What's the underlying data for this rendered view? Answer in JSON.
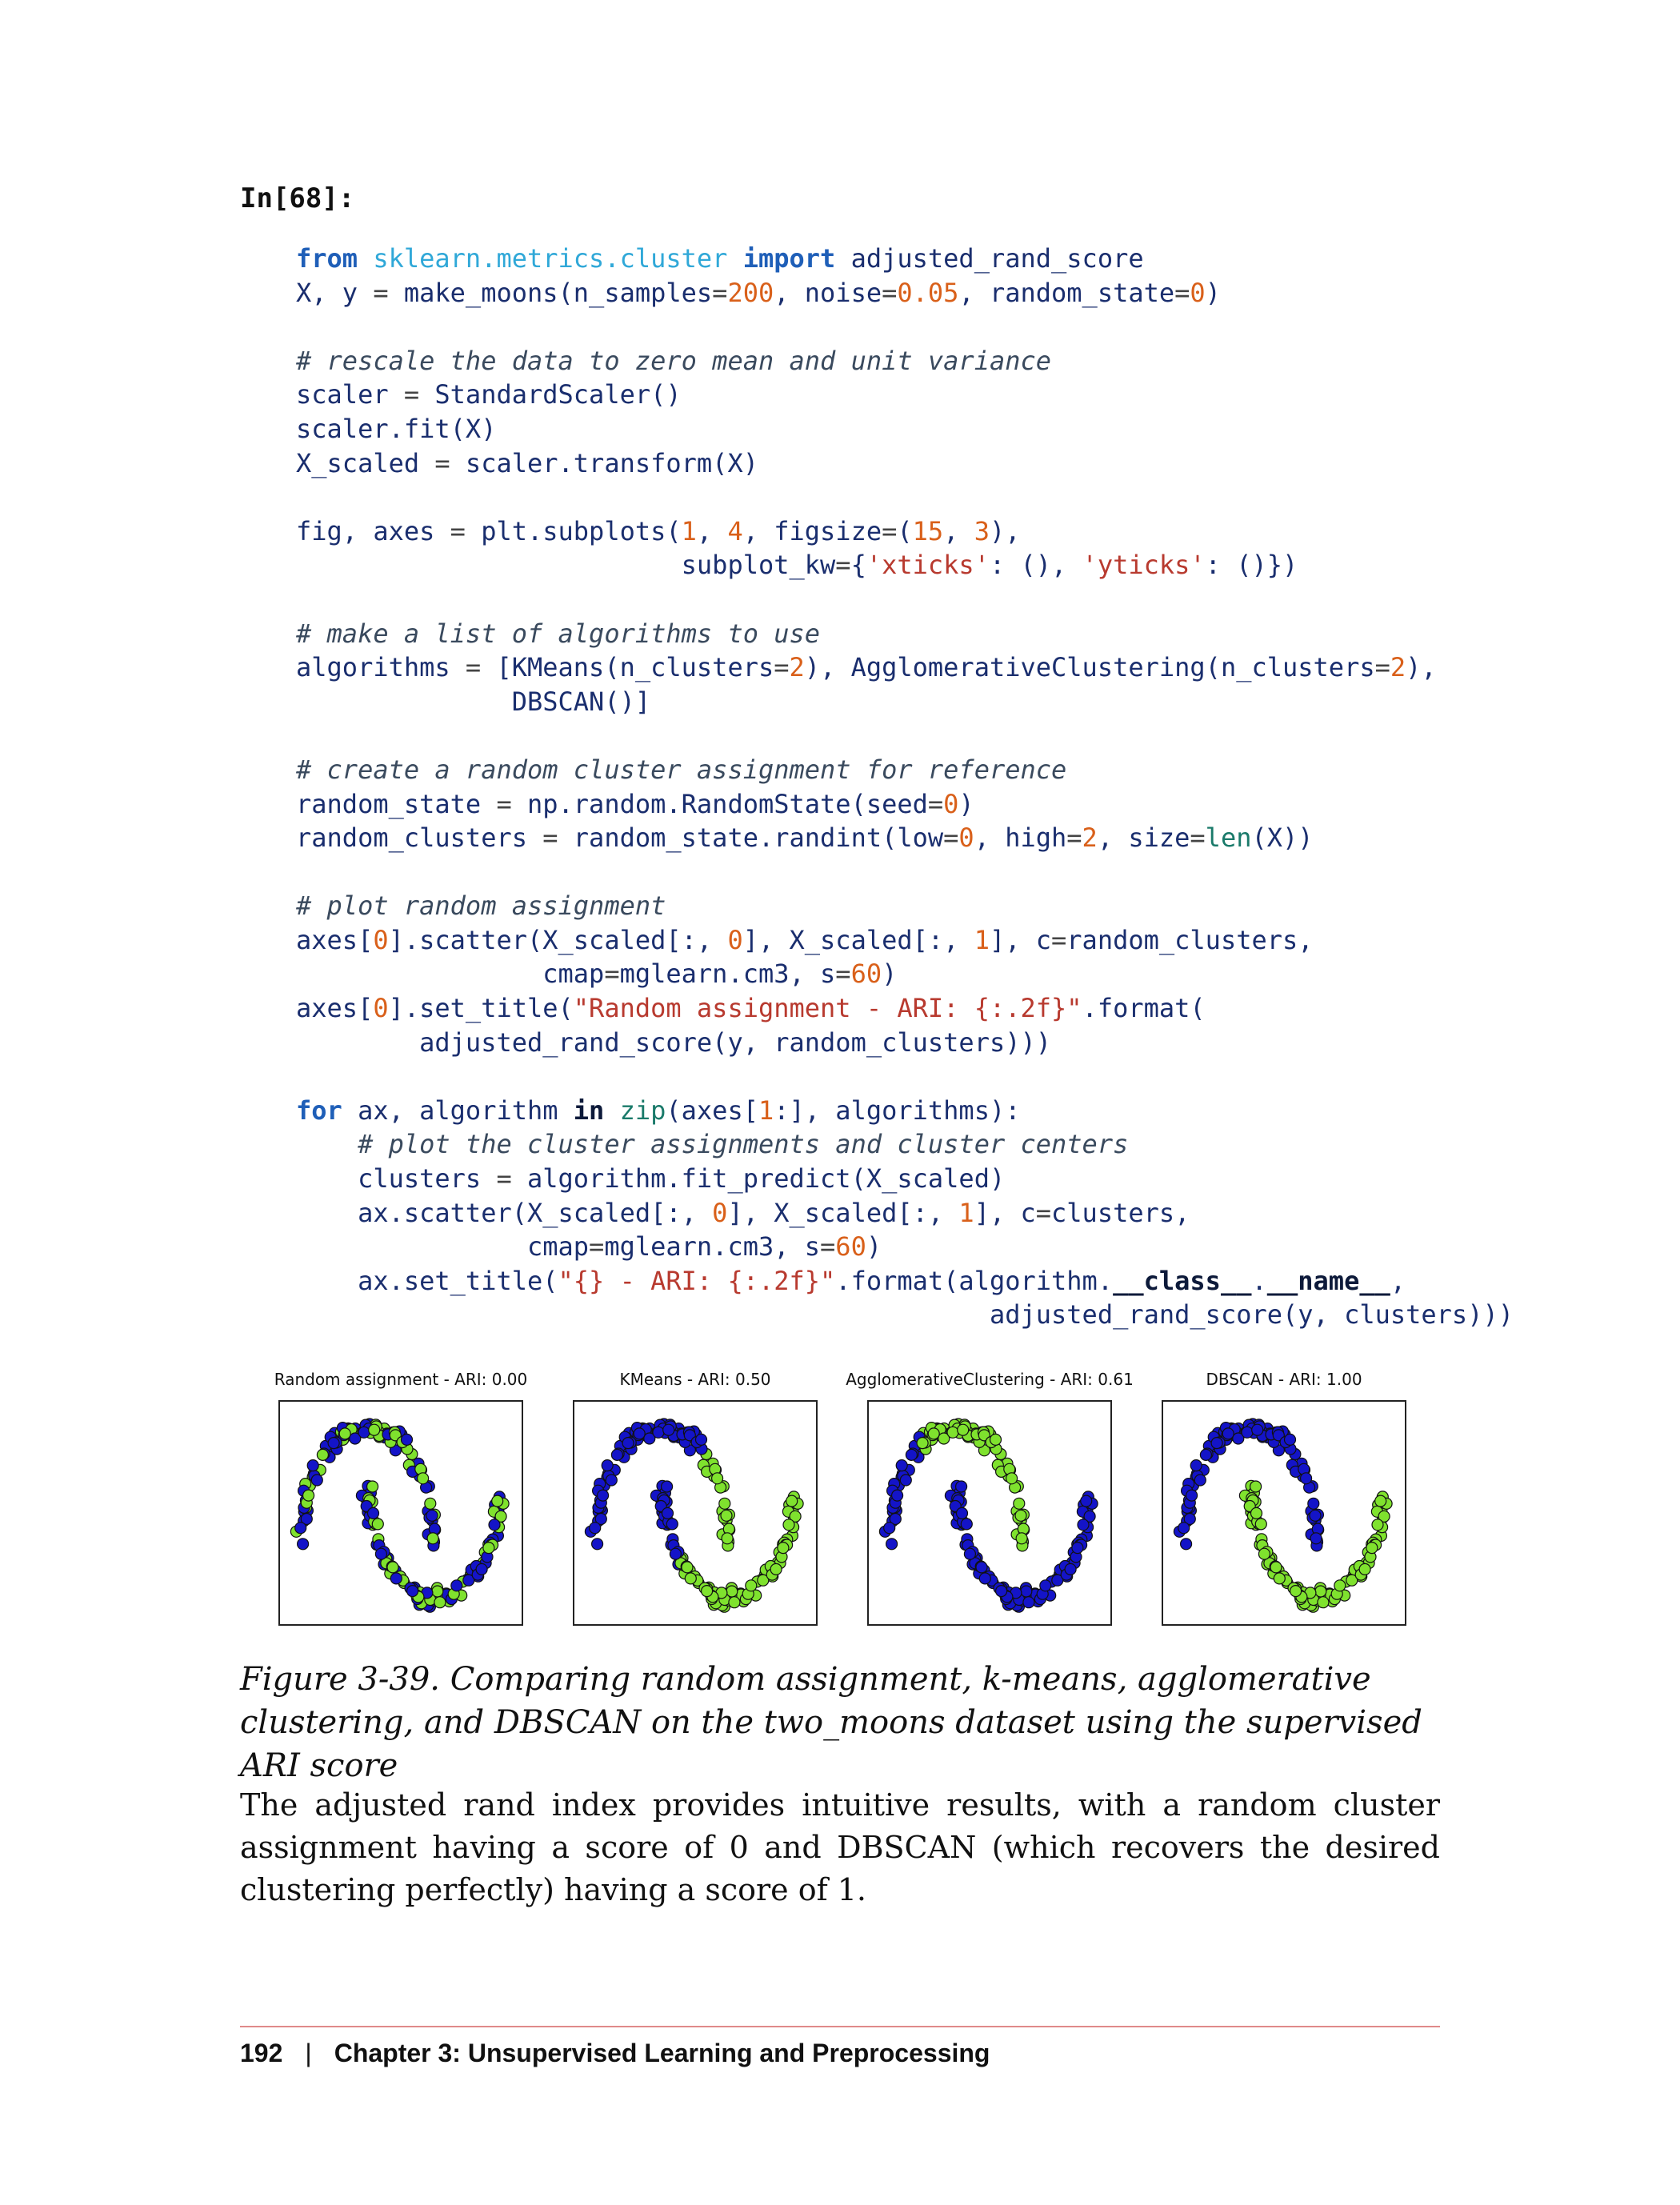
{
  "prompt": "In[68]:",
  "code_lines": [
    [
      [
        "kw",
        "from"
      ],
      [
        "t",
        " "
      ],
      [
        "mod",
        "sklearn.metrics.cluster"
      ],
      [
        "t",
        " "
      ],
      [
        "kw",
        "import"
      ],
      [
        "t",
        " adjusted_rand_score"
      ]
    ],
    [
      [
        "t",
        "X, y "
      ],
      [
        "op",
        "="
      ],
      [
        "t",
        " make_moons(n_samples"
      ],
      [
        "op",
        "="
      ],
      [
        "nu",
        "200"
      ],
      [
        "t",
        ", noise"
      ],
      [
        "op",
        "="
      ],
      [
        "nu",
        "0.05"
      ],
      [
        "t",
        ", random_state"
      ],
      [
        "op",
        "="
      ],
      [
        "nu",
        "0"
      ],
      [
        "t",
        ")"
      ]
    ],
    [],
    [
      [
        "cm",
        "# rescale the data to zero mean and unit variance"
      ]
    ],
    [
      [
        "t",
        "scaler "
      ],
      [
        "op",
        "="
      ],
      [
        "t",
        " StandardScaler()"
      ]
    ],
    [
      [
        "t",
        "scaler.fit(X)"
      ]
    ],
    [
      [
        "t",
        "X_scaled "
      ],
      [
        "op",
        "="
      ],
      [
        "t",
        " scaler.transform(X)"
      ]
    ],
    [],
    [
      [
        "t",
        "fig, axes "
      ],
      [
        "op",
        "="
      ],
      [
        "t",
        " plt.subplots("
      ],
      [
        "nu",
        "1"
      ],
      [
        "t",
        ", "
      ],
      [
        "nu",
        "4"
      ],
      [
        "t",
        ", figsize"
      ],
      [
        "op",
        "="
      ],
      [
        "t",
        "("
      ],
      [
        "nu",
        "15"
      ],
      [
        "t",
        ", "
      ],
      [
        "nu",
        "3"
      ],
      [
        "t",
        "),"
      ]
    ],
    [
      [
        "t",
        "                         subplot_kw"
      ],
      [
        "op",
        "="
      ],
      [
        "t",
        "{"
      ],
      [
        "st",
        "'xticks'"
      ],
      [
        "t",
        ": (), "
      ],
      [
        "st",
        "'yticks'"
      ],
      [
        "t",
        ": ()})"
      ]
    ],
    [],
    [
      [
        "cm",
        "# make a list of algorithms to use"
      ]
    ],
    [
      [
        "t",
        "algorithms "
      ],
      [
        "op",
        "="
      ],
      [
        "t",
        " [KMeans(n_clusters"
      ],
      [
        "op",
        "="
      ],
      [
        "nu",
        "2"
      ],
      [
        "t",
        "), AgglomerativeClustering(n_clusters"
      ],
      [
        "op",
        "="
      ],
      [
        "nu",
        "2"
      ],
      [
        "t",
        "),"
      ]
    ],
    [
      [
        "t",
        "              DBSCAN()]"
      ]
    ],
    [],
    [
      [
        "cm",
        "# create a random cluster assignment for reference"
      ]
    ],
    [
      [
        "t",
        "random_state "
      ],
      [
        "op",
        "="
      ],
      [
        "t",
        " np.random.RandomState(seed"
      ],
      [
        "op",
        "="
      ],
      [
        "nu",
        "0"
      ],
      [
        "t",
        ")"
      ]
    ],
    [
      [
        "t",
        "random_clusters "
      ],
      [
        "op",
        "="
      ],
      [
        "t",
        " random_state.randint(low"
      ],
      [
        "op",
        "="
      ],
      [
        "nu",
        "0"
      ],
      [
        "t",
        ", high"
      ],
      [
        "op",
        "="
      ],
      [
        "nu",
        "2"
      ],
      [
        "t",
        ", size"
      ],
      [
        "op",
        "="
      ],
      [
        "bi",
        "len"
      ],
      [
        "t",
        "(X))"
      ]
    ],
    [],
    [
      [
        "cm",
        "# plot random assignment"
      ]
    ],
    [
      [
        "t",
        "axes["
      ],
      [
        "nu",
        "0"
      ],
      [
        "t",
        "].scatter(X_scaled[:, "
      ],
      [
        "nu",
        "0"
      ],
      [
        "t",
        "], X_scaled[:, "
      ],
      [
        "nu",
        "1"
      ],
      [
        "t",
        "], c"
      ],
      [
        "op",
        "="
      ],
      [
        "t",
        "random_clusters,"
      ]
    ],
    [
      [
        "t",
        "                cmap"
      ],
      [
        "op",
        "="
      ],
      [
        "t",
        "mglearn.cm3, s"
      ],
      [
        "op",
        "="
      ],
      [
        "nu",
        "60"
      ],
      [
        "t",
        ")"
      ]
    ],
    [
      [
        "t",
        "axes["
      ],
      [
        "nu",
        "0"
      ],
      [
        "t",
        "].set_title("
      ],
      [
        "st",
        "\"Random assignment - ARI: {:.2f}\""
      ],
      [
        "t",
        ".format("
      ]
    ],
    [
      [
        "t",
        "        adjusted_rand_score(y, random_clusters)))"
      ]
    ],
    [],
    [
      [
        "kw",
        "for"
      ],
      [
        "t",
        " ax, algorithm "
      ],
      [
        "bold",
        "in"
      ],
      [
        "t",
        " "
      ],
      [
        "bi",
        "zip"
      ],
      [
        "t",
        "(axes["
      ],
      [
        "nu",
        "1"
      ],
      [
        "t",
        ":], algorithms):"
      ]
    ],
    [
      [
        "cm",
        "    # plot the cluster assignments and cluster centers"
      ]
    ],
    [
      [
        "t",
        "    clusters "
      ],
      [
        "op",
        "="
      ],
      [
        "t",
        " algorithm.fit_predict(X_scaled)"
      ]
    ],
    [
      [
        "t",
        "    ax.scatter(X_scaled[:, "
      ],
      [
        "nu",
        "0"
      ],
      [
        "t",
        "], X_scaled[:, "
      ],
      [
        "nu",
        "1"
      ],
      [
        "t",
        "], c"
      ],
      [
        "op",
        "="
      ],
      [
        "t",
        "clusters,"
      ]
    ],
    [
      [
        "t",
        "               cmap"
      ],
      [
        "op",
        "="
      ],
      [
        "t",
        "mglearn.cm3, s"
      ],
      [
        "op",
        "="
      ],
      [
        "nu",
        "60"
      ],
      [
        "t",
        ")"
      ]
    ],
    [
      [
        "t",
        "    ax.set_title("
      ],
      [
        "st",
        "\"{} - ARI: {:.2f}\""
      ],
      [
        "t",
        ".format(algorithm."
      ],
      [
        "bold",
        "__class__"
      ],
      [
        "t",
        "."
      ],
      [
        "bold",
        "__name__"
      ],
      [
        "t",
        ","
      ]
    ],
    [
      [
        "t",
        "                                             adjusted_rand_score(y, clusters)))"
      ]
    ]
  ],
  "panels": [
    {
      "title": "Random assignment - ARI: 0.00",
      "mode": "random"
    },
    {
      "title": "KMeans - ARI: 0.50",
      "mode": "kmeans"
    },
    {
      "title": "AgglomerativeClustering - ARI: 0.61",
      "mode": "agglo"
    },
    {
      "title": "DBSCAN - ARI: 1.00",
      "mode": "dbscan"
    }
  ],
  "colors": {
    "cluster0": "#1414c8",
    "cluster1": "#7fe22e",
    "edge": "#111111"
  },
  "figure_caption": "Figure 3-39. Comparing random assignment, k-means, agglomerative clustering, and DBSCAN on the two_moons dataset using the supervised ARI score",
  "body_paragraph": "The adjusted rand index provides intuitive results, with a random cluster assignment having a score of 0 and DBSCAN (which recovers the desired clustering perfectly) having a score of 1.",
  "footer": {
    "page_number": "192",
    "separator": "|",
    "chapter": "Chapter 3: Unsupervised Learning and Preprocessing"
  }
}
